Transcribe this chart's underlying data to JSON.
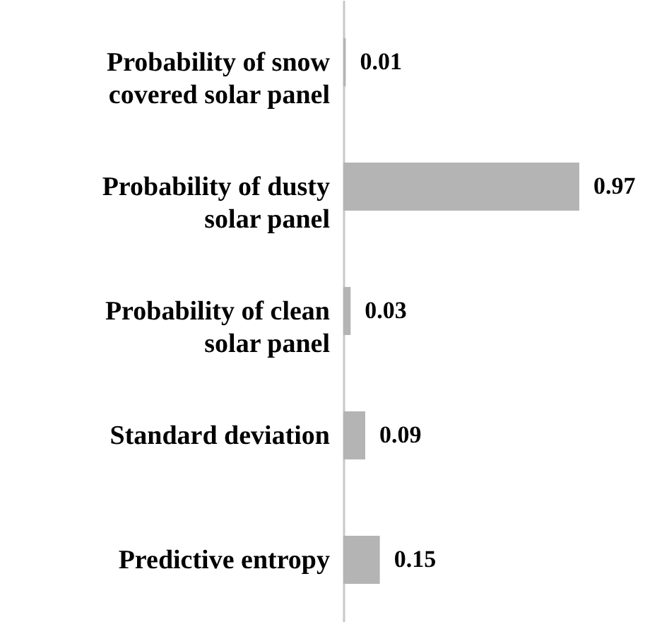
{
  "chart_data": {
    "type": "bar",
    "orientation": "horizontal",
    "categories": [
      "Probability of snow covered solar panel",
      "Probability of dusty solar panel",
      "Probability of clean solar panel",
      "Standard deviation",
      "Predictive entropy"
    ],
    "values": [
      0.01,
      0.97,
      0.03,
      0.09,
      0.15
    ],
    "color": "#b4b4b4",
    "data_labels": true,
    "tick_labels": "y"
  }
}
